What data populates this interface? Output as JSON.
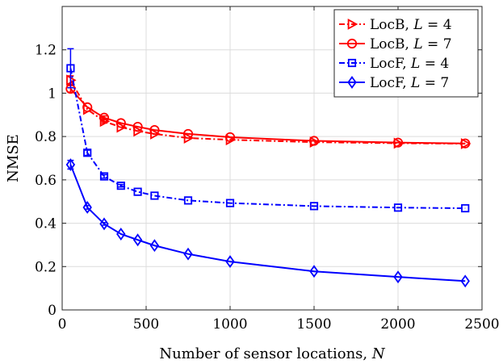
{
  "chart_data": {
    "type": "line",
    "xlabel": "Number of sensor locations,",
    "xlabel_var": "N",
    "ylabel": "NMSE",
    "xlim": [
      0,
      2500
    ],
    "ylim": [
      0,
      1.4
    ],
    "xticks": [
      0,
      500,
      1000,
      1500,
      2000,
      2500
    ],
    "yticks": [
      0,
      0.2,
      0.4,
      0.6,
      0.8,
      1,
      1.2
    ],
    "xtick_labels": [
      "0",
      "500",
      "1000",
      "1500",
      "2000",
      "2500"
    ],
    "ytick_labels": [
      "0",
      "0.2",
      "0.4",
      "0.6",
      "0.8",
      "1",
      "1.2"
    ],
    "grid": true,
    "legend_position": "top-right",
    "series": [
      {
        "name": "LocB, L = 4",
        "name_text": "LocB,",
        "name_var": "L",
        "name_eq": "= 4",
        "color": "#ff0000",
        "line_style": "dashdot",
        "marker": "triangle-right",
        "x": [
          50,
          150,
          250,
          350,
          450,
          550,
          750,
          1000,
          1500,
          2000,
          2400
        ],
        "y": [
          1.06,
          0.925,
          0.87,
          0.843,
          0.825,
          0.812,
          0.793,
          0.785,
          0.774,
          0.769,
          0.767
        ],
        "err": [
          0.02,
          0,
          0.008,
          0,
          0,
          0,
          0,
          0,
          0,
          0,
          0
        ]
      },
      {
        "name": "LocB, L = 7",
        "name_text": "LocB,",
        "name_var": "L",
        "name_eq": "= 7",
        "color": "#ff0000",
        "line_style": "solid",
        "marker": "circle",
        "x": [
          50,
          150,
          250,
          350,
          450,
          550,
          750,
          1000,
          1500,
          2000,
          2400
        ],
        "y": [
          1.02,
          0.935,
          0.887,
          0.862,
          0.845,
          0.83,
          0.812,
          0.797,
          0.78,
          0.772,
          0.768
        ],
        "err": [
          0.015,
          0,
          0.008,
          0,
          0,
          0,
          0,
          0,
          0,
          0,
          0
        ]
      },
      {
        "name": "LocF, L = 4",
        "name_text": "LocF,",
        "name_var": "L",
        "name_eq": "= 4",
        "color": "#0000ff",
        "line_style": "dashdot",
        "marker": "square",
        "x": [
          50,
          150,
          250,
          350,
          450,
          550,
          750,
          1000,
          1500,
          2000,
          2400
        ],
        "y": [
          1.115,
          0.725,
          0.616,
          0.573,
          0.545,
          0.527,
          0.505,
          0.493,
          0.479,
          0.472,
          0.469
        ],
        "err": [
          0.09,
          0.012,
          0.008,
          0.006,
          0,
          0,
          0,
          0,
          0,
          0,
          0
        ]
      },
      {
        "name": "LocF, L = 7",
        "name_text": "LocF,",
        "name_var": "L",
        "name_eq": "= 7",
        "color": "#0000ff",
        "line_style": "solid",
        "marker": "diamond",
        "x": [
          50,
          150,
          250,
          350,
          450,
          550,
          750,
          1000,
          1500,
          2000,
          2400
        ],
        "y": [
          0.67,
          0.473,
          0.397,
          0.35,
          0.323,
          0.297,
          0.258,
          0.223,
          0.178,
          0.152,
          0.133
        ],
        "err": [
          0.02,
          0.008,
          0.006,
          0,
          0,
          0,
          0,
          0,
          0,
          0,
          0
        ]
      }
    ]
  }
}
